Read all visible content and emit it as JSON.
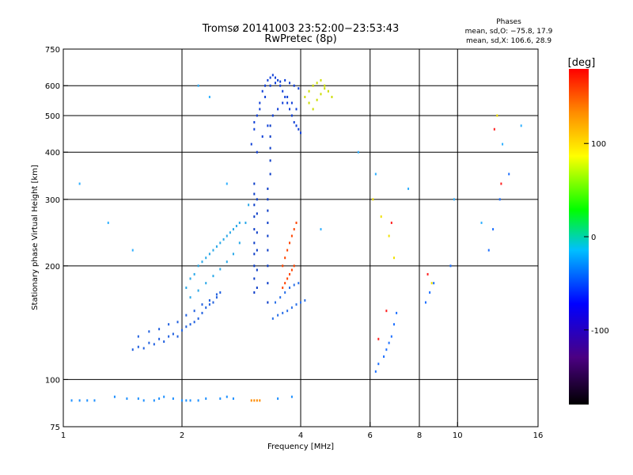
{
  "chart_data": {
    "type": "scatter",
    "title": "Tromsø 20141003 23:52:00−23:53:43",
    "subtitle": "RwPretec (8p)",
    "xlabel": "Frequency [MHz]",
    "ylabel": "Stationary phase Virtual Height [km]",
    "x_scale": "log2",
    "y_scale": "log",
    "xlim": [
      1,
      16
    ],
    "ylim": [
      75,
      750
    ],
    "x_ticks": [
      1,
      2,
      4,
      6,
      8,
      10,
      16
    ],
    "y_ticks": [
      75,
      100,
      200,
      300,
      400,
      500,
      600,
      750
    ],
    "x_gridlines": [
      2,
      4,
      6,
      8,
      10
    ],
    "y_gridlines": [
      100,
      200,
      300,
      400,
      500,
      600
    ],
    "grid": true,
    "stats": {
      "heading": "Phases",
      "line1": "mean, sd,O: −75.8, 17.9",
      "line2": "mean, sd,X: 106.6, 28.9"
    },
    "colorbar": {
      "label": "[deg]",
      "range": [
        -180,
        180
      ],
      "ticks": [
        100,
        0,
        -100
      ],
      "colormap": [
        "#000000",
        "#4b0082",
        "#0000ff",
        "#00bfff",
        "#00ff00",
        "#ffff00",
        "#ff8c00",
        "#ff0000"
      ]
    },
    "series": [
      {
        "color": "#1e90ff",
        "phase": -95,
        "x": [
          1.05,
          1.1,
          1.15,
          1.2,
          1.35,
          1.45,
          1.55,
          1.6,
          1.7,
          1.75,
          1.8,
          1.9,
          2.0,
          2.05,
          2.1,
          2.2,
          2.3,
          2.5,
          2.6,
          2.7,
          3.5,
          3.8
        ],
        "y": [
          88,
          88,
          88,
          88,
          90,
          89,
          89,
          88,
          88,
          89,
          90,
          89,
          88,
          88,
          88,
          88,
          89,
          89,
          90,
          89,
          89,
          90
        ]
      },
      {
        "color": "#ff8c00",
        "phase": 110,
        "x": [
          3.0,
          3.05,
          3.1,
          3.15
        ],
        "y": [
          88,
          88,
          88,
          88
        ]
      },
      {
        "color": "#2060e0",
        "phase": -110,
        "x": [
          1.5,
          1.55,
          1.6,
          1.65,
          1.7,
          1.75,
          1.8,
          1.85,
          1.9,
          1.95,
          2.0,
          2.05,
          2.1,
          2.15,
          2.2,
          2.25,
          2.3,
          2.35,
          2.4,
          2.45,
          2.5,
          1.55,
          1.65,
          1.75,
          1.85,
          1.95,
          2.05,
          2.15,
          2.25,
          2.35,
          2.45
        ],
        "y": [
          120,
          122,
          121,
          125,
          124,
          128,
          126,
          130,
          132,
          130,
          135,
          138,
          140,
          142,
          145,
          150,
          155,
          158,
          160,
          165,
          170,
          130,
          134,
          136,
          140,
          142,
          148,
          152,
          158,
          162,
          168
        ]
      },
      {
        "color": "#29a8e8",
        "phase": -80,
        "x": [
          2.05,
          2.1,
          2.15,
          2.2,
          2.25,
          2.3,
          2.35,
          2.4,
          2.45,
          2.5,
          2.55,
          2.6,
          2.65,
          2.7,
          2.75,
          2.8,
          2.1,
          2.2,
          2.3,
          2.4,
          2.5,
          2.6,
          2.7,
          2.8,
          2.9,
          2.95
        ],
        "y": [
          175,
          185,
          190,
          200,
          205,
          210,
          215,
          220,
          225,
          230,
          235,
          240,
          245,
          250,
          255,
          260,
          165,
          172,
          180,
          188,
          196,
          205,
          215,
          230,
          260,
          290
        ]
      },
      {
        "color": "#0a3cc8",
        "phase": -120,
        "x": [
          3.05,
          3.05,
          3.05,
          3.05,
          3.05,
          3.05,
          3.05,
          3.05,
          3.05,
          3.05,
          3.1,
          3.1,
          3.1,
          3.1,
          3.1,
          3.1,
          3.3,
          3.3,
          3.3,
          3.3,
          3.3,
          3.3,
          3.3,
          3.3,
          3.3,
          3.35,
          3.35,
          3.35,
          3.35,
          3.35
        ],
        "y": [
          170,
          185,
          200,
          215,
          230,
          250,
          270,
          290,
          310,
          330,
          175,
          195,
          220,
          245,
          275,
          300,
          160,
          180,
          200,
          220,
          240,
          260,
          280,
          300,
          320,
          350,
          380,
          410,
          440,
          470
        ]
      },
      {
        "color": "#1040d8",
        "phase": -115,
        "x": [
          3.0,
          3.05,
          3.1,
          3.15,
          3.2,
          3.25,
          3.3,
          3.35,
          3.4,
          3.45,
          3.5,
          3.55,
          3.6,
          3.65,
          3.7,
          3.75,
          3.8,
          3.85,
          3.9,
          3.95,
          4.0,
          3.05,
          3.15,
          3.25,
          3.35,
          3.45,
          3.55,
          3.65,
          3.75,
          3.85,
          3.95,
          3.1,
          3.2,
          3.3,
          3.4,
          3.5,
          3.6,
          3.7,
          3.8,
          3.9
        ],
        "y": [
          420,
          460,
          500,
          540,
          580,
          600,
          620,
          630,
          640,
          630,
          620,
          600,
          580,
          560,
          540,
          520,
          500,
          480,
          470,
          460,
          450,
          480,
          520,
          560,
          600,
          610,
          615,
          620,
          610,
          600,
          590,
          400,
          440,
          470,
          500,
          520,
          540,
          560,
          540,
          520
        ]
      },
      {
        "color": "#2a70e8",
        "phase": -100,
        "x": [
          3.4,
          3.5,
          3.6,
          3.7,
          3.8,
          3.9,
          4.0,
          4.1,
          3.45,
          3.55,
          3.65,
          3.75,
          3.85,
          3.95
        ],
        "y": [
          145,
          148,
          150,
          152,
          155,
          158,
          160,
          162,
          160,
          165,
          170,
          175,
          178,
          180
        ]
      },
      {
        "color": "#ff4500",
        "phase": 130,
        "x": [
          3.6,
          3.65,
          3.7,
          3.75,
          3.8,
          3.85,
          3.9,
          3.6,
          3.65,
          3.7,
          3.75,
          3.8,
          3.85
        ],
        "y": [
          200,
          210,
          220,
          230,
          240,
          250,
          260,
          175,
          180,
          185,
          190,
          195,
          200
        ]
      },
      {
        "color": "#ccdd00",
        "phase": 90,
        "x": [
          4.1,
          4.2,
          4.3,
          4.4,
          4.5,
          4.6,
          4.7,
          4.8,
          4.2,
          4.3,
          4.4,
          4.5,
          4.6
        ],
        "y": [
          560,
          580,
          600,
          610,
          620,
          600,
          580,
          560,
          540,
          520,
          550,
          570,
          590
        ]
      },
      {
        "color": "#1e70ff",
        "phase": -105,
        "x": [
          6.2,
          6.3,
          6.5,
          6.6,
          6.7,
          6.8,
          6.9,
          7.0,
          8.3,
          8.5,
          8.7,
          9.6,
          12.0,
          12.3,
          12.8,
          13.5
        ],
        "y": [
          105,
          110,
          115,
          120,
          125,
          130,
          140,
          150,
          160,
          170,
          180,
          200,
          220,
          250,
          300,
          350
        ]
      },
      {
        "color": "#ff2020",
        "phase": 150,
        "x": [
          6.3,
          6.6,
          6.8,
          8.4,
          12.4,
          12.9
        ],
        "y": [
          128,
          152,
          260,
          190,
          460,
          330
        ]
      },
      {
        "color": "#f0e000",
        "phase": 95,
        "x": [
          6.1,
          6.4,
          6.7,
          6.9,
          8.6,
          12.6
        ],
        "y": [
          300,
          270,
          240,
          210,
          180,
          500
        ]
      },
      {
        "color": "#30b0ff",
        "phase": -70,
        "x": [
          1.1,
          1.3,
          1.5,
          2.2,
          2.35,
          2.6,
          4.5,
          5.6,
          6.2,
          7.5,
          9.8,
          11.5,
          13.0,
          14.5
        ],
        "y": [
          330,
          260,
          220,
          600,
          560,
          330,
          250,
          400,
          350,
          320,
          300,
          260,
          420,
          470
        ]
      }
    ]
  }
}
